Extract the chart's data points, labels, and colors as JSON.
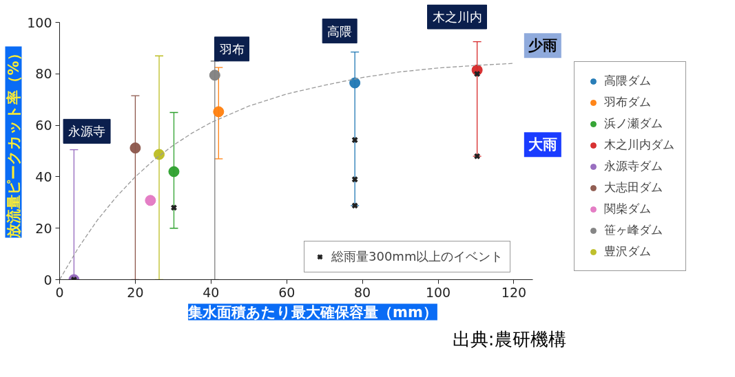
{
  "chart_data": {
    "type": "scatter",
    "xlabel": "集水面積あたり最大確保容量（mm）",
    "ylabel": "放流量ピークカット率（%）",
    "xlim": [
      0,
      125
    ],
    "ylim": [
      0,
      100
    ],
    "xticks": [
      0,
      20,
      40,
      60,
      80,
      100,
      120
    ],
    "yticks": [
      0,
      20,
      40,
      60,
      80,
      100
    ],
    "grid": false,
    "legend": "right",
    "marker": "circle",
    "series": [
      {
        "name": "高隈ダム",
        "color": "#1f77b4",
        "x": [
          78
        ],
        "values": [
          76.5
        ],
        "errors": [
          [
            28.8,
            88.5
          ]
        ]
      },
      {
        "name": "羽布ダム",
        "color": "#ff7f0e",
        "x": [
          42
        ],
        "values": [
          65.3
        ],
        "errors": [
          [
            47,
            82.5
          ]
        ]
      },
      {
        "name": "浜ノ瀬ダム",
        "color": "#2ca02c",
        "x": [
          30.2
        ],
        "values": [
          42
        ],
        "errors": [
          [
            20,
            65
          ]
        ]
      },
      {
        "name": "木之川内ダム",
        "color": "#d62728",
        "x": [
          110.3
        ],
        "values": [
          81.5
        ],
        "errors": [
          [
            48,
            92.5
          ]
        ]
      },
      {
        "name": "永源寺ダム",
        "color": "#9467bd",
        "x": [
          3.8
        ],
        "values": [
          0
        ],
        "errors": [
          [
            0,
            50.5
          ]
        ]
      },
      {
        "name": "大志田ダム",
        "color": "#8c564b",
        "x": [
          20
        ],
        "values": [
          51.2
        ],
        "errors": [
          [
            0,
            71.5
          ]
        ]
      },
      {
        "name": "関柴ダム",
        "color": "#e377c2",
        "x": [
          24
        ],
        "values": [
          30.8
        ]
      },
      {
        "name": "笹ヶ峰ダム",
        "color": "#7f7f7f",
        "x": [
          41
        ],
        "values": [
          79.5
        ],
        "errors": [
          [
            0,
            85
          ]
        ]
      },
      {
        "name": "豊沢ダム",
        "color": "#bcbd22",
        "x": [
          26.3
        ],
        "values": [
          48.7
        ],
        "errors": [
          [
            0,
            87
          ]
        ]
      },
      {
        "name": "総雨量300mm以上のイベント",
        "color": "#222222",
        "marker": "cross",
        "x": [
          78,
          78,
          78,
          30.2,
          110.3,
          110.3,
          3.8
        ],
        "values": [
          54.3,
          39,
          28.8,
          28,
          80,
          48,
          0
        ]
      },
      {
        "type": "line",
        "color": "#999999",
        "line_style": "dashed",
        "marker": "none",
        "x": [
          0,
          5,
          10,
          15,
          20,
          25,
          30,
          35,
          40,
          50,
          60,
          70,
          80,
          90,
          100,
          110,
          120
        ],
        "values": [
          0,
          12.5,
          23.2,
          32.2,
          40,
          46.6,
          52.2,
          57,
          61.1,
          67.5,
          72.2,
          75.6,
          78.6,
          80.8,
          82.3,
          83.3,
          84.1
        ]
      }
    ],
    "annotations": [
      "永源寺",
      "羽布",
      "高隈",
      "木之川内",
      "少雨",
      "大雨",
      "出典:農研機構"
    ]
  }
}
